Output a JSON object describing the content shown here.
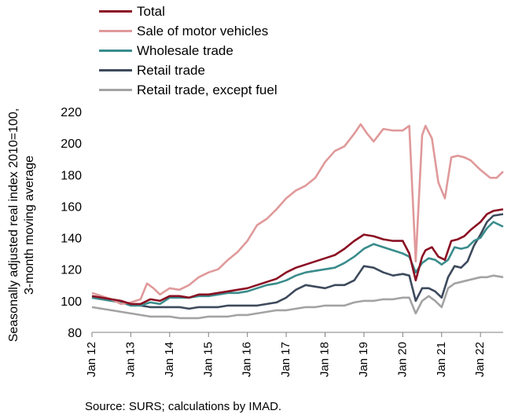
{
  "chart_data": {
    "type": "line",
    "ylabel_lines": [
      "Seasonally adjusted real index 2010=100,",
      "3-month moving average"
    ],
    "ylim": [
      80,
      220
    ],
    "yticks": [
      80,
      100,
      120,
      140,
      160,
      180,
      200,
      220
    ],
    "xticks": [
      "Jan 12",
      "Jan 13",
      "Jan 14",
      "Jan 15",
      "Jan 16",
      "Jan 17",
      "Jan 18",
      "Jan 19",
      "Jan 20",
      "Jan 21",
      "Jan 22"
    ],
    "x_start": "2012-01",
    "x_end": "2022-08",
    "grid": false,
    "legend_position": "top",
    "series": [
      {
        "name": "Total",
        "color": "#8b0f23",
        "points": [
          [
            "2012-01",
            103
          ],
          [
            "2012-04",
            102
          ],
          [
            "2012-07",
            101
          ],
          [
            "2012-10",
            100
          ],
          [
            "2013-01",
            98
          ],
          [
            "2013-04",
            98
          ],
          [
            "2013-07",
            101
          ],
          [
            "2013-10",
            100
          ],
          [
            "2014-01",
            103
          ],
          [
            "2014-04",
            103
          ],
          [
            "2014-07",
            102
          ],
          [
            "2014-10",
            104
          ],
          [
            "2015-01",
            104
          ],
          [
            "2015-04",
            105
          ],
          [
            "2015-07",
            106
          ],
          [
            "2015-10",
            107
          ],
          [
            "2016-01",
            108
          ],
          [
            "2016-04",
            110
          ],
          [
            "2016-07",
            112
          ],
          [
            "2016-10",
            114
          ],
          [
            "2017-01",
            118
          ],
          [
            "2017-04",
            121
          ],
          [
            "2017-07",
            123
          ],
          [
            "2017-10",
            125
          ],
          [
            "2018-01",
            127
          ],
          [
            "2018-04",
            129
          ],
          [
            "2018-07",
            133
          ],
          [
            "2018-10",
            138
          ],
          [
            "2019-01",
            142
          ],
          [
            "2019-04",
            141
          ],
          [
            "2019-07",
            139
          ],
          [
            "2019-10",
            138
          ],
          [
            "2020-01",
            138
          ],
          [
            "2020-03",
            130
          ],
          [
            "2020-05",
            113
          ],
          [
            "2020-07",
            128
          ],
          [
            "2020-08",
            132
          ],
          [
            "2020-10",
            134
          ],
          [
            "2020-12",
            128
          ],
          [
            "2021-02",
            126
          ],
          [
            "2021-04",
            138
          ],
          [
            "2021-06",
            139
          ],
          [
            "2021-08",
            141
          ],
          [
            "2021-10",
            145
          ],
          [
            "2022-01",
            150
          ],
          [
            "2022-03",
            155
          ],
          [
            "2022-05",
            157
          ],
          [
            "2022-08",
            158
          ]
        ]
      },
      {
        "name": "Sale of motor vehicles",
        "color": "#e0999a",
        "points": [
          [
            "2012-01",
            105
          ],
          [
            "2012-04",
            103
          ],
          [
            "2012-07",
            101
          ],
          [
            "2012-10",
            98
          ],
          [
            "2013-01",
            99
          ],
          [
            "2013-04",
            101
          ],
          [
            "2013-06",
            111
          ],
          [
            "2013-08",
            108
          ],
          [
            "2013-10",
            104
          ],
          [
            "2014-01",
            108
          ],
          [
            "2014-04",
            107
          ],
          [
            "2014-07",
            110
          ],
          [
            "2014-10",
            115
          ],
          [
            "2015-01",
            118
          ],
          [
            "2015-04",
            120
          ],
          [
            "2015-07",
            126
          ],
          [
            "2015-10",
            131
          ],
          [
            "2016-01",
            138
          ],
          [
            "2016-04",
            148
          ],
          [
            "2016-07",
            152
          ],
          [
            "2016-10",
            158
          ],
          [
            "2017-01",
            165
          ],
          [
            "2017-04",
            170
          ],
          [
            "2017-07",
            173
          ],
          [
            "2017-10",
            178
          ],
          [
            "2018-01",
            188
          ],
          [
            "2018-04",
            195
          ],
          [
            "2018-07",
            198
          ],
          [
            "2018-10",
            206
          ],
          [
            "2018-12",
            212
          ],
          [
            "2019-02",
            206
          ],
          [
            "2019-04",
            201
          ],
          [
            "2019-07",
            209
          ],
          [
            "2019-10",
            208
          ],
          [
            "2020-01",
            208
          ],
          [
            "2020-03",
            211
          ],
          [
            "2020-05",
            125
          ],
          [
            "2020-07",
            205
          ],
          [
            "2020-08",
            211
          ],
          [
            "2020-10",
            203
          ],
          [
            "2020-12",
            175
          ],
          [
            "2021-02",
            165
          ],
          [
            "2021-04",
            191
          ],
          [
            "2021-06",
            192
          ],
          [
            "2021-08",
            191
          ],
          [
            "2021-10",
            189
          ],
          [
            "2022-01",
            183
          ],
          [
            "2022-04",
            178
          ],
          [
            "2022-06",
            178
          ],
          [
            "2022-08",
            182
          ]
        ]
      },
      {
        "name": "Wholesale trade",
        "color": "#3a8c8c",
        "points": [
          [
            "2012-01",
            102
          ],
          [
            "2012-04",
            101
          ],
          [
            "2012-07",
            100
          ],
          [
            "2012-10",
            99
          ],
          [
            "2013-01",
            97
          ],
          [
            "2013-04",
            97
          ],
          [
            "2013-07",
            99
          ],
          [
            "2013-10",
            98
          ],
          [
            "2014-01",
            102
          ],
          [
            "2014-04",
            102
          ],
          [
            "2014-07",
            102
          ],
          [
            "2014-10",
            103
          ],
          [
            "2015-01",
            103
          ],
          [
            "2015-04",
            104
          ],
          [
            "2015-07",
            105
          ],
          [
            "2015-10",
            105
          ],
          [
            "2016-01",
            106
          ],
          [
            "2016-04",
            108
          ],
          [
            "2016-07",
            110
          ],
          [
            "2016-10",
            111
          ],
          [
            "2017-01",
            113
          ],
          [
            "2017-04",
            116
          ],
          [
            "2017-07",
            118
          ],
          [
            "2017-10",
            119
          ],
          [
            "2018-01",
            120
          ],
          [
            "2018-04",
            121
          ],
          [
            "2018-07",
            124
          ],
          [
            "2018-10",
            128
          ],
          [
            "2019-01",
            133
          ],
          [
            "2019-04",
            136
          ],
          [
            "2019-07",
            134
          ],
          [
            "2019-10",
            132
          ],
          [
            "2020-01",
            130
          ],
          [
            "2020-03",
            128
          ],
          [
            "2020-05",
            118
          ],
          [
            "2020-07",
            124
          ],
          [
            "2020-09",
            127
          ],
          [
            "2020-11",
            126
          ],
          [
            "2021-01",
            123
          ],
          [
            "2021-03",
            126
          ],
          [
            "2021-05",
            134
          ],
          [
            "2021-07",
            133
          ],
          [
            "2021-09",
            134
          ],
          [
            "2021-11",
            138
          ],
          [
            "2022-01",
            140
          ],
          [
            "2022-03",
            146
          ],
          [
            "2022-05",
            150
          ],
          [
            "2022-08",
            147
          ]
        ]
      },
      {
        "name": "Retail trade",
        "color": "#3d4a5c",
        "points": [
          [
            "2012-01",
            102
          ],
          [
            "2012-04",
            101
          ],
          [
            "2012-07",
            100
          ],
          [
            "2012-10",
            99
          ],
          [
            "2013-01",
            98
          ],
          [
            "2013-04",
            97
          ],
          [
            "2013-07",
            96
          ],
          [
            "2013-10",
            96
          ],
          [
            "2014-01",
            96
          ],
          [
            "2014-04",
            96
          ],
          [
            "2014-07",
            95
          ],
          [
            "2014-10",
            96
          ],
          [
            "2015-01",
            96
          ],
          [
            "2015-04",
            96
          ],
          [
            "2015-07",
            97
          ],
          [
            "2015-10",
            97
          ],
          [
            "2016-01",
            97
          ],
          [
            "2016-04",
            97
          ],
          [
            "2016-07",
            98
          ],
          [
            "2016-10",
            99
          ],
          [
            "2017-01",
            102
          ],
          [
            "2017-04",
            107
          ],
          [
            "2017-07",
            110
          ],
          [
            "2017-10",
            109
          ],
          [
            "2018-01",
            108
          ],
          [
            "2018-04",
            110
          ],
          [
            "2018-07",
            110
          ],
          [
            "2018-10",
            113
          ],
          [
            "2019-01",
            122
          ],
          [
            "2019-04",
            121
          ],
          [
            "2019-07",
            118
          ],
          [
            "2019-10",
            116
          ],
          [
            "2020-01",
            117
          ],
          [
            "2020-03",
            116
          ],
          [
            "2020-05",
            100
          ],
          [
            "2020-07",
            108
          ],
          [
            "2020-09",
            108
          ],
          [
            "2020-11",
            106
          ],
          [
            "2021-01",
            102
          ],
          [
            "2021-03",
            115
          ],
          [
            "2021-05",
            122
          ],
          [
            "2021-07",
            121
          ],
          [
            "2021-09",
            125
          ],
          [
            "2021-11",
            135
          ],
          [
            "2022-01",
            142
          ],
          [
            "2022-03",
            150
          ],
          [
            "2022-05",
            154
          ],
          [
            "2022-08",
            155
          ]
        ]
      },
      {
        "name": "Retail trade, except fuel",
        "color": "#a3a3a3",
        "points": [
          [
            "2012-01",
            96
          ],
          [
            "2012-04",
            95
          ],
          [
            "2012-07",
            94
          ],
          [
            "2012-10",
            93
          ],
          [
            "2013-01",
            92
          ],
          [
            "2013-04",
            91
          ],
          [
            "2013-07",
            90
          ],
          [
            "2013-10",
            90
          ],
          [
            "2014-01",
            90
          ],
          [
            "2014-04",
            89
          ],
          [
            "2014-07",
            89
          ],
          [
            "2014-10",
            89
          ],
          [
            "2015-01",
            90
          ],
          [
            "2015-04",
            90
          ],
          [
            "2015-07",
            90
          ],
          [
            "2015-10",
            91
          ],
          [
            "2016-01",
            91
          ],
          [
            "2016-04",
            92
          ],
          [
            "2016-07",
            93
          ],
          [
            "2016-10",
            94
          ],
          [
            "2017-01",
            94
          ],
          [
            "2017-04",
            95
          ],
          [
            "2017-07",
            96
          ],
          [
            "2017-10",
            96
          ],
          [
            "2018-01",
            97
          ],
          [
            "2018-04",
            97
          ],
          [
            "2018-07",
            97
          ],
          [
            "2018-10",
            99
          ],
          [
            "2019-01",
            100
          ],
          [
            "2019-04",
            100
          ],
          [
            "2019-07",
            101
          ],
          [
            "2019-10",
            101
          ],
          [
            "2020-01",
            102
          ],
          [
            "2020-03",
            102
          ],
          [
            "2020-05",
            92
          ],
          [
            "2020-07",
            100
          ],
          [
            "2020-09",
            103
          ],
          [
            "2020-11",
            100
          ],
          [
            "2021-01",
            96
          ],
          [
            "2021-03",
            108
          ],
          [
            "2021-05",
            111
          ],
          [
            "2021-07",
            112
          ],
          [
            "2021-09",
            113
          ],
          [
            "2021-11",
            114
          ],
          [
            "2022-01",
            115
          ],
          [
            "2022-03",
            115
          ],
          [
            "2022-05",
            116
          ],
          [
            "2022-08",
            115
          ]
        ]
      }
    ]
  },
  "source_text": "Source: SURS; calculations by IMAD."
}
